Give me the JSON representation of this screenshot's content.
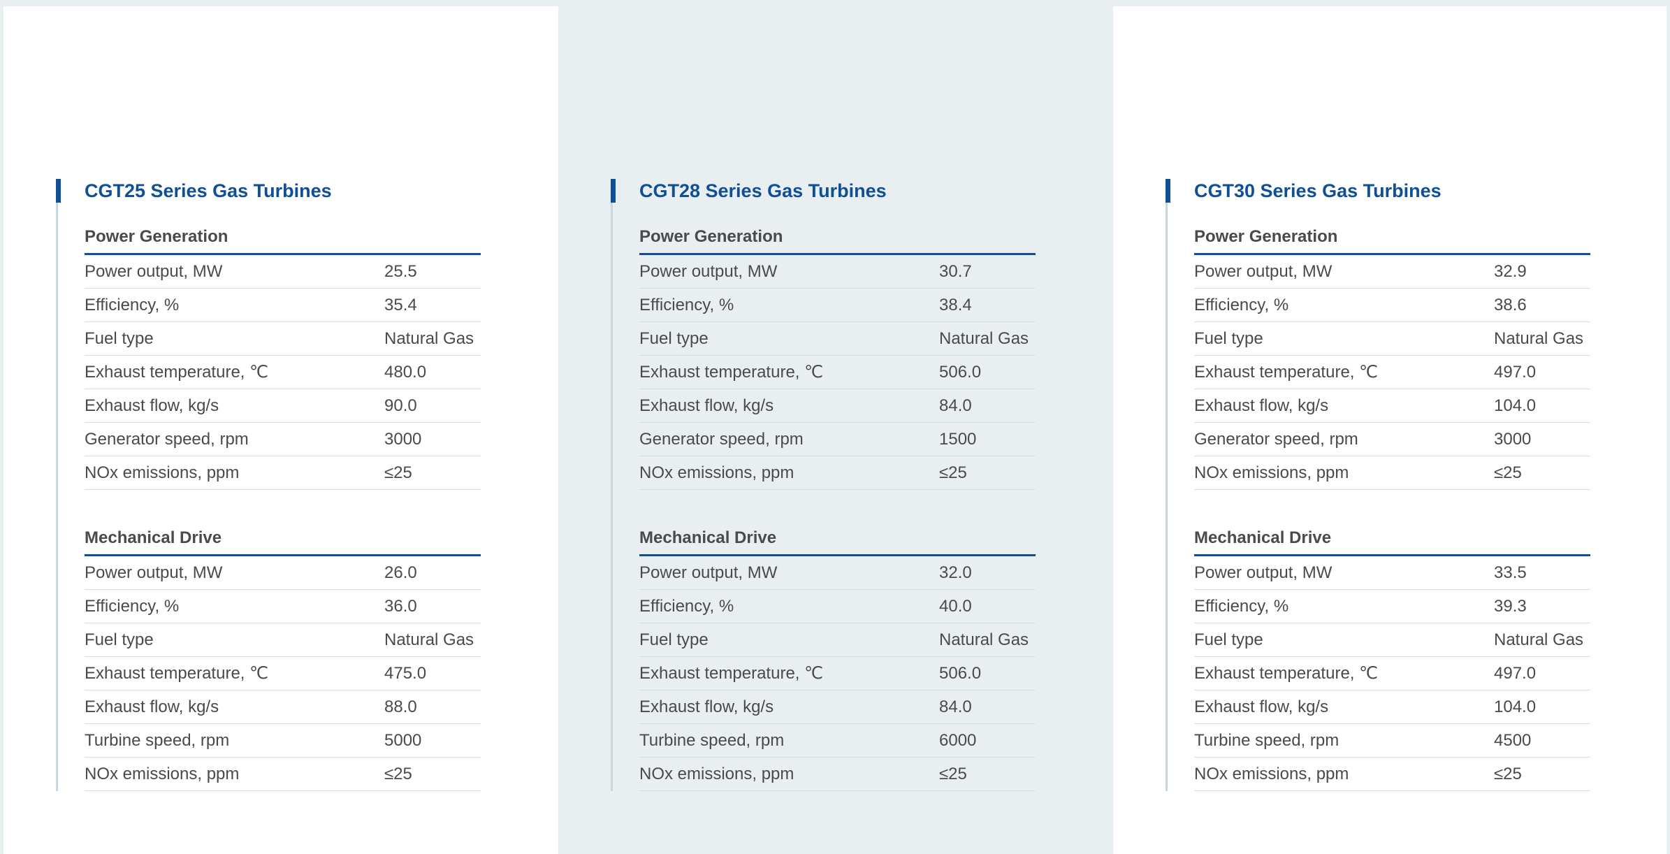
{
  "series": [
    {
      "title": "CGT25 Series Gas Turbines",
      "power_generation": {
        "heading": "Power Generation",
        "rows": [
          {
            "label": "Power output, MW",
            "value": "25.5"
          },
          {
            "label": "Efficiency, %",
            "value": "35.4"
          },
          {
            "label": "Fuel type",
            "value": "Natural Gas"
          },
          {
            "label": "Exhaust temperature, ℃",
            "value": "480.0"
          },
          {
            "label": "Exhaust flow, kg/s",
            "value": "90.0"
          },
          {
            "label": "Generator speed, rpm",
            "value": "3000"
          },
          {
            "label": "NOx emissions, ppm",
            "value": "≤25"
          }
        ]
      },
      "mechanical_drive": {
        "heading": "Mechanical Drive",
        "rows": [
          {
            "label": "Power output, MW",
            "value": "26.0"
          },
          {
            "label": "Efficiency, %",
            "value": "36.0"
          },
          {
            "label": "Fuel type",
            "value": "Natural Gas"
          },
          {
            "label": "Exhaust temperature, ℃",
            "value": "475.0"
          },
          {
            "label": "Exhaust flow, kg/s",
            "value": "88.0"
          },
          {
            "label": "Turbine speed, rpm",
            "value": "5000"
          },
          {
            "label": "NOx emissions, ppm",
            "value": "≤25"
          }
        ]
      }
    },
    {
      "title": "CGT28 Series Gas Turbines",
      "power_generation": {
        "heading": "Power Generation",
        "rows": [
          {
            "label": "Power output, MW",
            "value": "30.7"
          },
          {
            "label": "Efficiency, %",
            "value": "38.4"
          },
          {
            "label": "Fuel type",
            "value": "Natural Gas"
          },
          {
            "label": "Exhaust temperature, ℃",
            "value": "506.0"
          },
          {
            "label": "Exhaust flow, kg/s",
            "value": "84.0"
          },
          {
            "label": "Generator speed, rpm",
            "value": "1500"
          },
          {
            "label": "NOx emissions, ppm",
            "value": "≤25"
          }
        ]
      },
      "mechanical_drive": {
        "heading": "Mechanical Drive",
        "rows": [
          {
            "label": "Power output, MW",
            "value": "32.0"
          },
          {
            "label": "Efficiency, %",
            "value": "40.0"
          },
          {
            "label": "Fuel type",
            "value": "Natural Gas"
          },
          {
            "label": "Exhaust temperature, ℃",
            "value": "506.0"
          },
          {
            "label": "Exhaust flow, kg/s",
            "value": "84.0"
          },
          {
            "label": "Turbine speed, rpm",
            "value": "6000"
          },
          {
            "label": "NOx emissions, ppm",
            "value": "≤25"
          }
        ]
      }
    },
    {
      "title": "CGT30 Series Gas Turbines",
      "power_generation": {
        "heading": "Power Generation",
        "rows": [
          {
            "label": "Power output, MW",
            "value": "32.9"
          },
          {
            "label": "Efficiency, %",
            "value": "38.6"
          },
          {
            "label": "Fuel type",
            "value": "Natural Gas"
          },
          {
            "label": "Exhaust temperature, ℃",
            "value": "497.0"
          },
          {
            "label": "Exhaust flow, kg/s",
            "value": "104.0"
          },
          {
            "label": "Generator speed, rpm",
            "value": "3000"
          },
          {
            "label": "NOx emissions, ppm",
            "value": "≤25"
          }
        ]
      },
      "mechanical_drive": {
        "heading": "Mechanical Drive",
        "rows": [
          {
            "label": "Power output, MW",
            "value": "33.5"
          },
          {
            "label": "Efficiency, %",
            "value": "39.3"
          },
          {
            "label": "Fuel type",
            "value": "Natural Gas"
          },
          {
            "label": "Exhaust temperature, ℃",
            "value": "497.0"
          },
          {
            "label": "Exhaust flow, kg/s",
            "value": "104.0"
          },
          {
            "label": "Turbine speed, rpm",
            "value": "4500"
          },
          {
            "label": "NOx emissions, ppm",
            "value": "≤25"
          }
        ]
      }
    }
  ],
  "colors": {
    "accent": "#0e4f96",
    "text": "#4a4a4a",
    "panel_gray": "#e9eef1"
  }
}
